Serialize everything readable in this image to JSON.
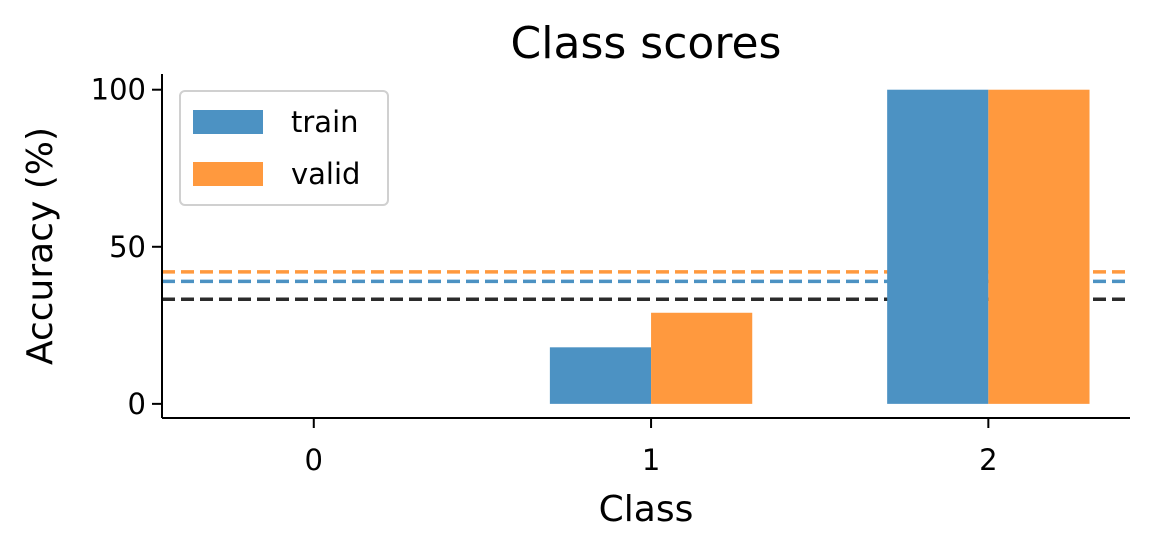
{
  "chart_data": {
    "type": "bar",
    "title": "Class scores",
    "xlabel": "Class",
    "ylabel": "Accuracy (%)",
    "categories": [
      "0",
      "1",
      "2"
    ],
    "ylim": [
      -4.5,
      105
    ],
    "yticks": [
      "0",
      "50",
      "100"
    ],
    "series": [
      {
        "name": "train",
        "values": [
          0,
          18,
          100
        ],
        "color": "#4c92c3"
      },
      {
        "name": "valid",
        "values": [
          0,
          29,
          100
        ],
        "color": "#ff993e"
      }
    ],
    "reference_lines": [
      {
        "series": "valid",
        "value": 42,
        "color": "#ff993e",
        "style": "dashed"
      },
      {
        "series": "train",
        "value": 39,
        "color": "#4c92c3",
        "style": "dashed"
      },
      {
        "series": "chance",
        "value": 33.3,
        "color": "#2b2b2b",
        "style": "dashed"
      }
    ],
    "legend_position": "top-left",
    "grid": false
  }
}
